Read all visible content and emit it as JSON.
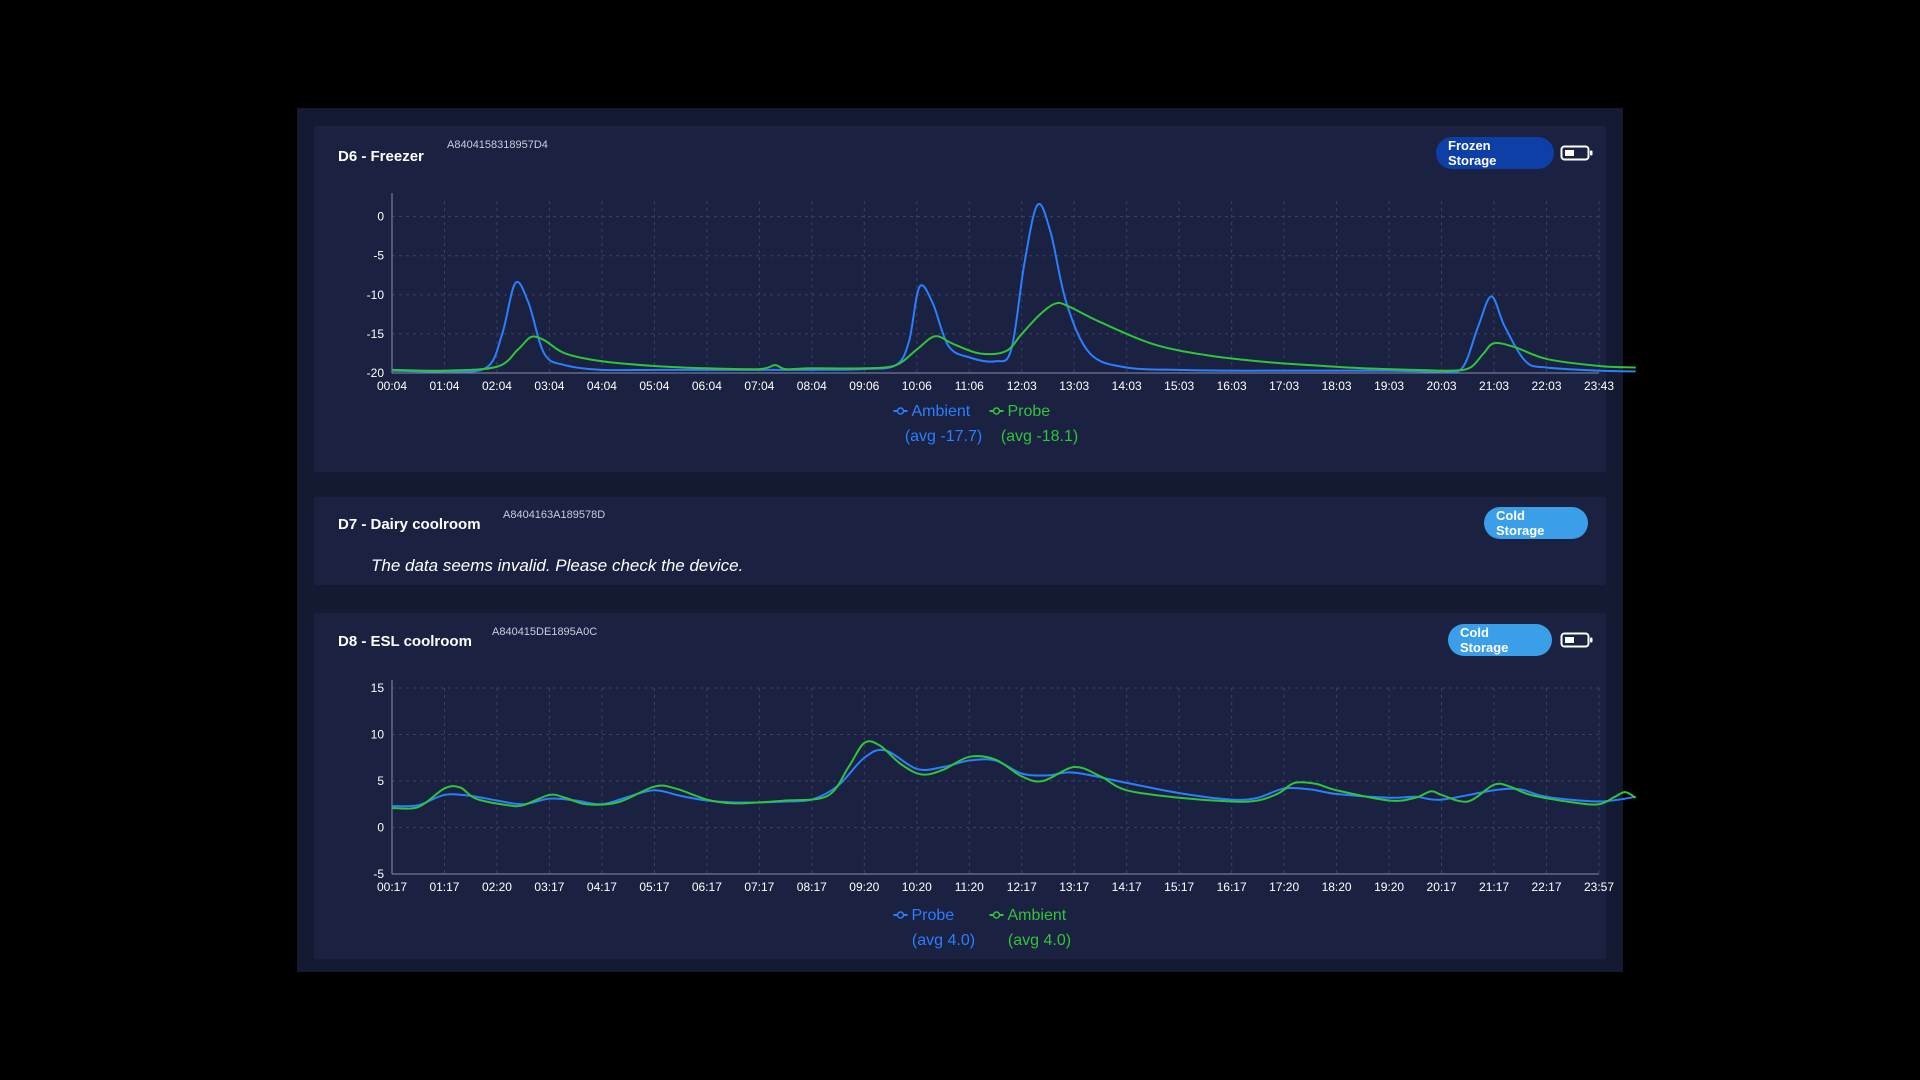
{
  "colors": {
    "blue": "#2a7fff",
    "green": "#2fc43a",
    "grid": "#3a4266",
    "axis": "#8a90a8",
    "tick_text": "#ffffff"
  },
  "cards": [
    {
      "title": "D6 - Freezer",
      "device_id": "A8404158318957D4",
      "badge": "Frozen Storage",
      "battery_icon": "battery-half-icon",
      "chart_data": {
        "type": "line",
        "x": [
          "00:04",
          "01:04",
          "02:04",
          "03:04",
          "04:04",
          "05:04",
          "06:04",
          "07:04",
          "08:04",
          "09:06",
          "10:06",
          "11:06",
          "12:03",
          "13:03",
          "14:03",
          "15:03",
          "16:03",
          "17:03",
          "18:03",
          "19:03",
          "20:03",
          "21:03",
          "22:03",
          "23:43"
        ],
        "yticks": [
          "0",
          "-5",
          "-10",
          "-15",
          "-20"
        ],
        "ylim": [
          -20,
          2
        ],
        "series": [
          {
            "name": "Ambient",
            "avg_label": "(avg -17.7)",
            "color": "#2a7fff",
            "points": [
              [
                0,
                -19.7
              ],
              [
                1,
                -19.8
              ],
              [
                1.8,
                -19.3
              ],
              [
                2.1,
                -15
              ],
              [
                2.35,
                -8.5
              ],
              [
                2.6,
                -11
              ],
              [
                2.9,
                -17.5
              ],
              [
                3.3,
                -19
              ],
              [
                4,
                -19.6
              ],
              [
                5,
                -19.6
              ],
              [
                6,
                -19.6
              ],
              [
                7,
                -19.6
              ],
              [
                8,
                -19.6
              ],
              [
                9,
                -19.5
              ],
              [
                9.6,
                -19
              ],
              [
                9.85,
                -16
              ],
              [
                10.05,
                -9
              ],
              [
                10.3,
                -11
              ],
              [
                10.6,
                -16.5
              ],
              [
                11,
                -18
              ],
              [
                11.5,
                -18.5
              ],
              [
                11.8,
                -17
              ],
              [
                12.05,
                -6
              ],
              [
                12.3,
                1.5
              ],
              [
                12.55,
                -2
              ],
              [
                12.85,
                -11
              ],
              [
                13.3,
                -17.5
              ],
              [
                14,
                -19.3
              ],
              [
                15,
                -19.6
              ],
              [
                16,
                -19.7
              ],
              [
                17,
                -19.7
              ],
              [
                18,
                -19.7
              ],
              [
                19,
                -19.7
              ],
              [
                20,
                -19.8
              ],
              [
                20.4,
                -19.3
              ],
              [
                20.7,
                -14
              ],
              [
                20.95,
                -10.2
              ],
              [
                21.2,
                -14
              ],
              [
                21.6,
                -18.5
              ],
              [
                22,
                -19.3
              ],
              [
                23,
                -19.7
              ],
              [
                23.7,
                -19.8
              ]
            ]
          },
          {
            "name": "Probe",
            "avg_label": "(avg -18.1)",
            "color": "#2fc43a",
            "points": [
              [
                0,
                -19.6
              ],
              [
                1,
                -19.7
              ],
              [
                2,
                -19.2
              ],
              [
                2.4,
                -17
              ],
              [
                2.65,
                -15.4
              ],
              [
                2.9,
                -15.8
              ],
              [
                3.3,
                -17.5
              ],
              [
                4,
                -18.5
              ],
              [
                5,
                -19.1
              ],
              [
                6,
                -19.4
              ],
              [
                7,
                -19.5
              ],
              [
                7.3,
                -19.0
              ],
              [
                7.5,
                -19.5
              ],
              [
                8,
                -19.4
              ],
              [
                9,
                -19.4
              ],
              [
                9.6,
                -19
              ],
              [
                10,
                -17
              ],
              [
                10.35,
                -15.3
              ],
              [
                10.7,
                -16.3
              ],
              [
                11.2,
                -17.5
              ],
              [
                11.7,
                -17.2
              ],
              [
                12,
                -15
              ],
              [
                12.35,
                -12.5
              ],
              [
                12.65,
                -11.1
              ],
              [
                12.9,
                -11.5
              ],
              [
                13.5,
                -13.5
              ],
              [
                14.5,
                -16.3
              ],
              [
                15.5,
                -17.7
              ],
              [
                16.5,
                -18.5
              ],
              [
                17.5,
                -19
              ],
              [
                18.5,
                -19.4
              ],
              [
                19.5,
                -19.6
              ],
              [
                20.2,
                -19.7
              ],
              [
                20.55,
                -19.3
              ],
              [
                20.8,
                -17.5
              ],
              [
                21,
                -16.2
              ],
              [
                21.4,
                -16.7
              ],
              [
                22,
                -18.2
              ],
              [
                23,
                -19.1
              ],
              [
                23.7,
                -19.3
              ]
            ]
          }
        ]
      }
    },
    {
      "title": "D7 - Dairy coolroom",
      "device_id": "A8404163A189578D",
      "badge": "Cold Storage",
      "message": "The data seems invalid. Please check the device."
    },
    {
      "title": "D8 - ESL coolroom",
      "device_id": "A840415DE1895A0C",
      "badge": "Cold Storage",
      "battery_icon": "battery-half-icon",
      "chart_data": {
        "type": "line",
        "x": [
          "00:17",
          "01:17",
          "02:20",
          "03:17",
          "04:17",
          "05:17",
          "06:17",
          "07:17",
          "08:17",
          "09:20",
          "10:20",
          "11:20",
          "12:17",
          "13:17",
          "14:17",
          "15:17",
          "16:17",
          "17:20",
          "18:20",
          "19:20",
          "20:17",
          "21:17",
          "22:17",
          "23:57"
        ],
        "yticks": [
          "15",
          "10",
          "5",
          "0",
          "-5"
        ],
        "ylim": [
          -5,
          15
        ],
        "series": [
          {
            "name": "Probe",
            "avg_label": "(avg 4.0)",
            "color": "#2a7fff",
            "points": [
              [
                0,
                2.3
              ],
              [
                0.5,
                2.4
              ],
              [
                1,
                3.5
              ],
              [
                1.5,
                3.4
              ],
              [
                2,
                2.9
              ],
              [
                2.5,
                2.5
              ],
              [
                3,
                3.1
              ],
              [
                3.5,
                2.9
              ],
              [
                4,
                2.5
              ],
              [
                4.5,
                3.3
              ],
              [
                5,
                4.0
              ],
              [
                5.5,
                3.4
              ],
              [
                6,
                2.9
              ],
              [
                6.5,
                2.7
              ],
              [
                7,
                2.7
              ],
              [
                7.5,
                2.8
              ],
              [
                8,
                3.0
              ],
              [
                8.5,
                4.5
              ],
              [
                9,
                7.5
              ],
              [
                9.4,
                8.3
              ],
              [
                10,
                6.3
              ],
              [
                10.5,
                6.5
              ],
              [
                11,
                7.2
              ],
              [
                11.5,
                7.2
              ],
              [
                12,
                5.8
              ],
              [
                12.5,
                5.6
              ],
              [
                13,
                5.9
              ],
              [
                14,
                4.8
              ],
              [
                15,
                3.7
              ],
              [
                16,
                3.0
              ],
              [
                16.5,
                3.2
              ],
              [
                17,
                4.2
              ],
              [
                17.5,
                4.1
              ],
              [
                18,
                3.6
              ],
              [
                19,
                3.2
              ],
              [
                19.5,
                3.3
              ],
              [
                20,
                3.0
              ],
              [
                21,
                4.0
              ],
              [
                21.5,
                4.1
              ],
              [
                22,
                3.3
              ],
              [
                23,
                2.8
              ],
              [
                23.7,
                3.3
              ]
            ]
          },
          {
            "name": "Ambient",
            "avg_label": "(avg 4.0)",
            "color": "#2fc43a",
            "points": [
              [
                0,
                2.1
              ],
              [
                0.5,
                2.2
              ],
              [
                1,
                4.2
              ],
              [
                1.3,
                4.3
              ],
              [
                1.6,
                3.1
              ],
              [
                2.2,
                2.4
              ],
              [
                2.5,
                2.4
              ],
              [
                3,
                3.5
              ],
              [
                3.3,
                3.2
              ],
              [
                3.7,
                2.5
              ],
              [
                4.3,
                2.7
              ],
              [
                5,
                4.4
              ],
              [
                5.4,
                4.2
              ],
              [
                6,
                3.0
              ],
              [
                6.5,
                2.6
              ],
              [
                7,
                2.7
              ],
              [
                7.5,
                2.9
              ],
              [
                8.3,
                3.4
              ],
              [
                8.7,
                6.5
              ],
              [
                9,
                9.1
              ],
              [
                9.3,
                8.8
              ],
              [
                9.7,
                6.8
              ],
              [
                10.1,
                5.7
              ],
              [
                10.5,
                6.2
              ],
              [
                11,
                7.6
              ],
              [
                11.5,
                7.3
              ],
              [
                12,
                5.5
              ],
              [
                12.4,
                5.0
              ],
              [
                13,
                6.5
              ],
              [
                13.5,
                5.5
              ],
              [
                14,
                4.0
              ],
              [
                15,
                3.2
              ],
              [
                16,
                2.8
              ],
              [
                16.5,
                2.9
              ],
              [
                16.9,
                3.7
              ],
              [
                17.2,
                4.8
              ],
              [
                17.6,
                4.7
              ],
              [
                18,
                4.0
              ],
              [
                19,
                2.9
              ],
              [
                19.5,
                3.2
              ],
              [
                19.8,
                3.9
              ],
              [
                20,
                3.5
              ],
              [
                20.5,
                2.8
              ],
              [
                21,
                4.6
              ],
              [
                21.3,
                4.4
              ],
              [
                21.7,
                3.5
              ],
              [
                22.5,
                2.7
              ],
              [
                23,
                2.5
              ],
              [
                23.3,
                3.3
              ],
              [
                23.5,
                3.8
              ],
              [
                23.7,
                3.2
              ]
            ]
          }
        ]
      }
    }
  ]
}
